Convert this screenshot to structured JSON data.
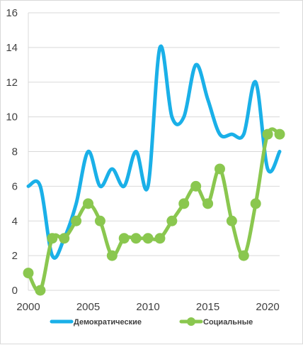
{
  "chart_data": {
    "type": "line",
    "x": [
      2000,
      2001,
      2002,
      2003,
      2004,
      2005,
      2006,
      2007,
      2008,
      2009,
      2010,
      2011,
      2012,
      2013,
      2014,
      2015,
      2016,
      2017,
      2018,
      2019,
      2020,
      2021
    ],
    "xlim": [
      2000,
      2021
    ],
    "ylim": [
      0,
      16
    ],
    "x_ticks": [
      2000,
      2005,
      2010,
      2015,
      2020
    ],
    "y_ticks": [
      0,
      2,
      4,
      6,
      8,
      10,
      12,
      14,
      16
    ],
    "grid": "horizontal",
    "smooth": true,
    "legend_position": "bottom",
    "series": [
      {
        "name": "Демократические",
        "color": "#1ab0e8",
        "markers": false,
        "values": [
          6,
          6,
          2,
          3,
          5,
          8,
          6,
          7,
          6,
          8,
          6,
          14,
          10,
          10,
          13,
          11,
          9,
          9,
          9,
          12,
          7,
          8
        ]
      },
      {
        "name": "Социальные",
        "color": "#8ac74f",
        "markers": true,
        "values": [
          1,
          0,
          3,
          3,
          4,
          5,
          4,
          2,
          3,
          3,
          3,
          3,
          4,
          5,
          6,
          5,
          7,
          4,
          2,
          5,
          9,
          9
        ]
      }
    ]
  }
}
